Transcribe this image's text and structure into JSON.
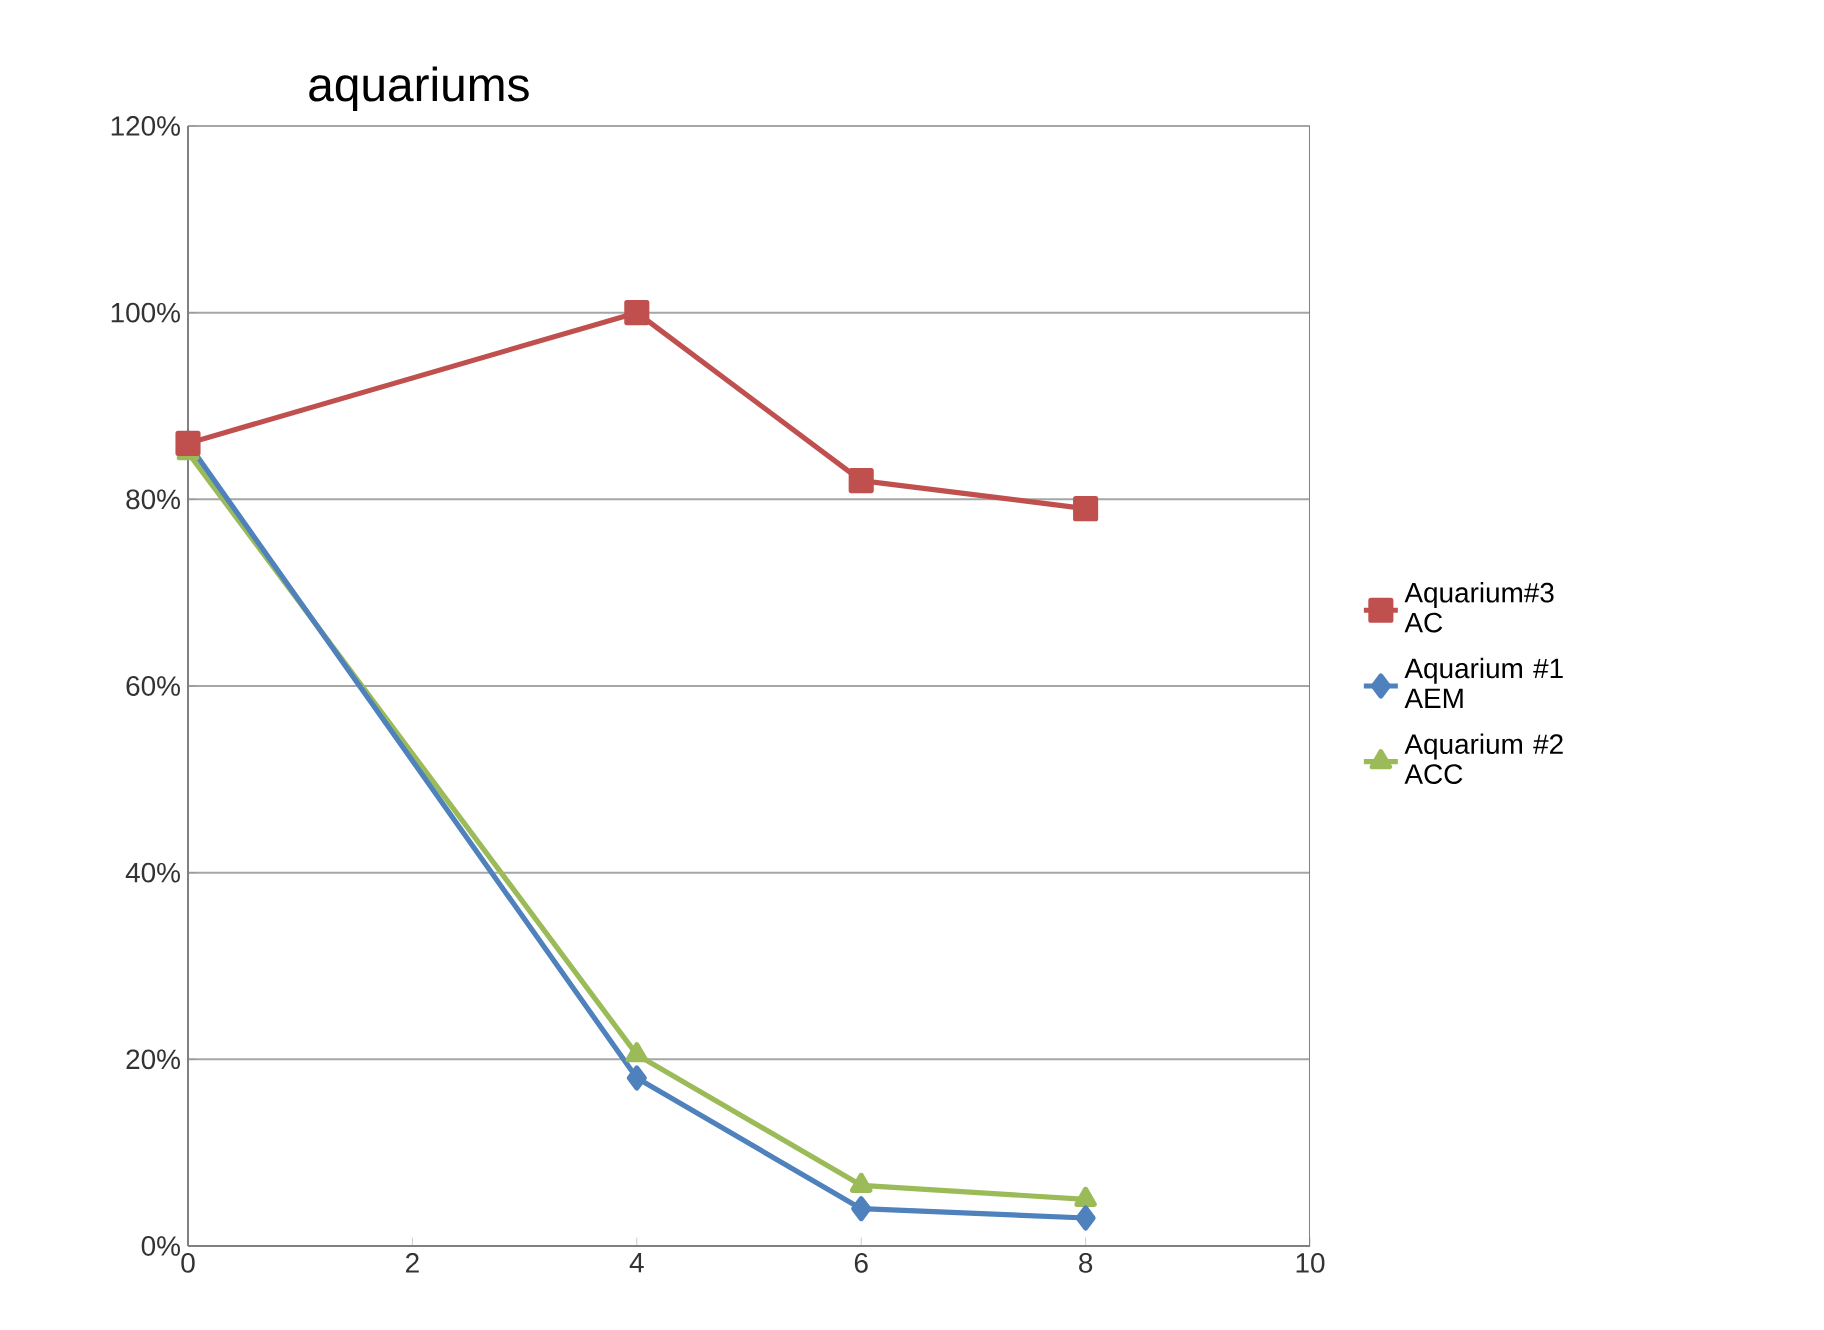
{
  "chart_data": {
    "type": "line",
    "title": "aquariums",
    "x": [
      0,
      4,
      6,
      8
    ],
    "series": [
      {
        "name": "Aquarium#3 AC",
        "color": "#c0504d",
        "marker": "square",
        "values": [
          86,
          100,
          82,
          79
        ]
      },
      {
        "name": "Aquarium #1 AEM",
        "color": "#4f81bd",
        "marker": "diamond",
        "values": [
          86,
          18,
          4,
          3
        ]
      },
      {
        "name": "Aquarium #2 ACC",
        "color": "#9bbb59",
        "marker": "triangle",
        "values": [
          85,
          20.5,
          6.5,
          5
        ]
      }
    ],
    "xlim": [
      0,
      10
    ],
    "xticks": [
      0,
      2,
      4,
      6,
      8,
      10
    ],
    "ylim": [
      0,
      120
    ],
    "yticks": [
      {
        "value": 0,
        "label": "0%"
      },
      {
        "value": 20,
        "label": "20%"
      },
      {
        "value": 40,
        "label": "40%"
      },
      {
        "value": 60,
        "label": "60%"
      },
      {
        "value": 80,
        "label": "80%"
      },
      {
        "value": 100,
        "label": "100%"
      },
      {
        "value": 120,
        "label": "120%"
      }
    ],
    "grid": "y",
    "legend": "right",
    "line_style": "solid"
  }
}
